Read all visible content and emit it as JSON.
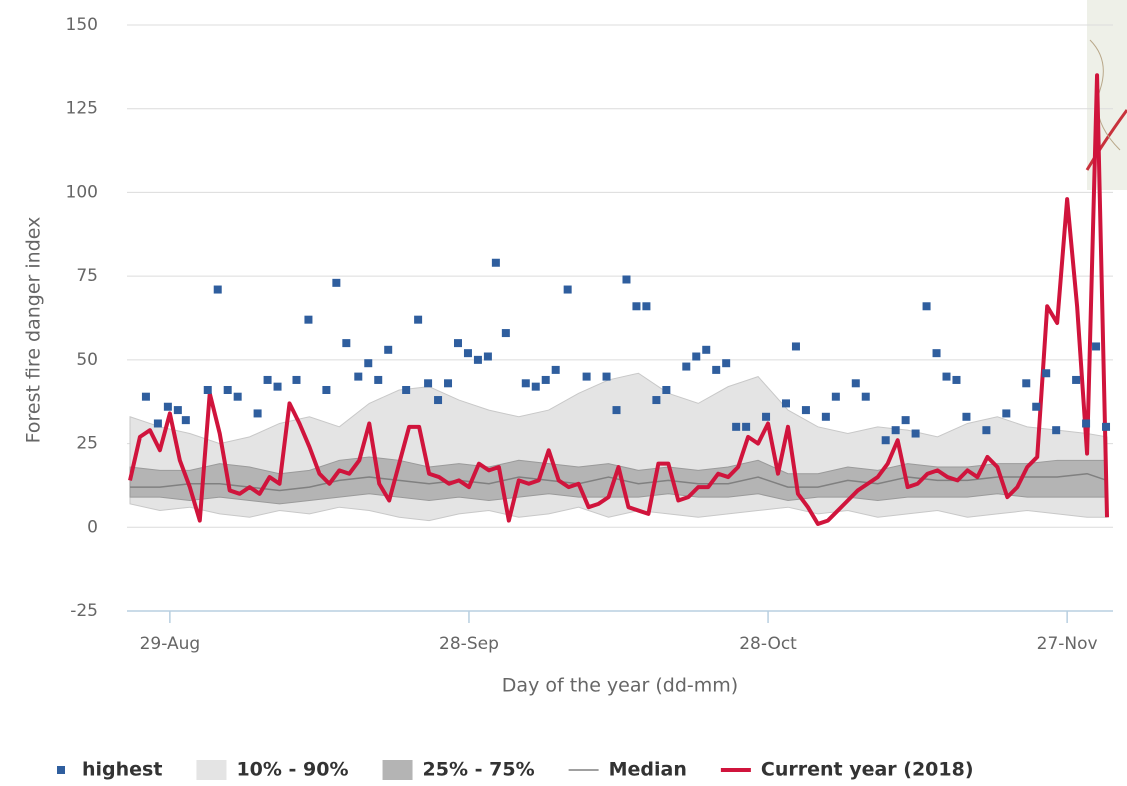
{
  "chart_data": {
    "type": "line",
    "x_label": "Day of the year (dd-mm)",
    "y_label": "Forest fire danger index",
    "xlim": [
      236.7,
      335.6
    ],
    "xticks": [
      {
        "value": 241,
        "label": "29-Aug"
      },
      {
        "value": 271,
        "label": "28-Sep"
      },
      {
        "value": 301,
        "label": "28-Oct"
      },
      {
        "value": 331,
        "label": "27-Nov"
      }
    ],
    "ylim": [
      -25,
      150
    ],
    "yticks": [
      150,
      125,
      100,
      75,
      50,
      25,
      0,
      -25
    ],
    "grid": true,
    "legend": "bottom",
    "series": [
      {
        "name": "highest",
        "kind": "scatter",
        "color": "#2f5e9e",
        "x": [
          238.6,
          239.8,
          240.8,
          241.8,
          242.6,
          244.8,
          245.8,
          246.8,
          247.8,
          249.8,
          250.8,
          251.8,
          253.7,
          254.9,
          256.7,
          257.7,
          258.7,
          259.9,
          260.9,
          261.9,
          262.9,
          264.7,
          265.9,
          266.9,
          267.9,
          268.9,
          269.9,
          270.9,
          271.9,
          272.9,
          273.7,
          274.7,
          276.7,
          277.7,
          278.7,
          279.7,
          280.9,
          282.8,
          284.8,
          285.8,
          286.8,
          287.8,
          288.8,
          289.8,
          290.8,
          292.8,
          293.8,
          294.8,
          295.8,
          296.8,
          297.8,
          298.8,
          300.8,
          302.8,
          303.8,
          304.8,
          306.8,
          307.8,
          309.8,
          310.8,
          312.8,
          313.8,
          314.8,
          315.8,
          316.9,
          317.9,
          318.9,
          319.9,
          320.9,
          322.9,
          324.9,
          326.9,
          327.9,
          328.9,
          329.9,
          331.9,
          332.9,
          333.9,
          334.9
        ],
        "values": [
          39,
          31,
          36,
          35,
          32,
          41,
          71,
          41,
          39,
          34,
          44,
          42,
          44,
          62,
          41,
          73,
          55,
          45,
          49,
          44,
          53,
          41,
          62,
          43,
          38,
          43,
          55,
          52,
          50,
          51,
          79,
          58,
          43,
          42,
          44,
          47,
          71,
          45,
          45,
          35,
          74,
          66,
          66,
          38,
          41,
          48,
          51,
          53,
          47,
          49,
          30,
          30,
          33,
          37,
          54,
          35,
          33,
          39,
          43,
          39,
          26,
          29,
          32,
          28,
          66,
          52,
          45,
          44,
          33,
          29,
          34,
          43,
          36,
          46,
          29,
          44,
          31,
          54,
          30
        ]
      },
      {
        "name": "10% - 90%",
        "kind": "range",
        "color": "#e4e4e4",
        "edge": "#c8c8c8",
        "x": [
          237,
          240,
          243,
          246,
          249,
          252,
          255,
          258,
          261,
          264,
          267,
          270,
          273,
          276,
          279,
          282,
          285,
          288,
          291,
          294,
          297,
          300,
          303,
          306,
          309,
          312,
          315,
          318,
          321,
          324,
          327,
          330,
          333,
          335
        ],
        "low": [
          7,
          5,
          6,
          4,
          3,
          5,
          4,
          6,
          5,
          3,
          2,
          4,
          5,
          3,
          4,
          6,
          3,
          5,
          4,
          3,
          4,
          5,
          6,
          4,
          5,
          3,
          4,
          5,
          3,
          4,
          5,
          4,
          3,
          3
        ],
        "high": [
          33,
          30,
          28,
          25,
          27,
          31,
          33,
          30,
          37,
          41,
          42,
          38,
          35,
          33,
          35,
          40,
          44,
          46,
          40,
          37,
          42,
          45,
          35,
          30,
          28,
          30,
          29,
          27,
          31,
          33,
          30,
          29,
          28,
          27
        ]
      },
      {
        "name": "25% - 75%",
        "kind": "range",
        "color": "#b4b4b4",
        "edge": "#9a9a9a",
        "x": [
          237,
          240,
          243,
          246,
          249,
          252,
          255,
          258,
          261,
          264,
          267,
          270,
          273,
          276,
          279,
          282,
          285,
          288,
          291,
          294,
          297,
          300,
          303,
          306,
          309,
          312,
          315,
          318,
          321,
          324,
          327,
          330,
          333,
          335
        ],
        "low": [
          9,
          9,
          8,
          9,
          8,
          7,
          8,
          9,
          10,
          9,
          8,
          9,
          8,
          9,
          10,
          9,
          9,
          9,
          10,
          9,
          9,
          10,
          8,
          9,
          9,
          8,
          9,
          9,
          9,
          10,
          9,
          9,
          9,
          9
        ],
        "high": [
          18,
          17,
          17,
          19,
          18,
          16,
          17,
          20,
          21,
          20,
          18,
          19,
          18,
          20,
          19,
          18,
          19,
          17,
          18,
          17,
          18,
          20,
          16,
          16,
          18,
          17,
          19,
          18,
          18,
          19,
          19,
          20,
          20,
          20
        ]
      },
      {
        "name": "Median",
        "kind": "line",
        "color": "#808080",
        "width": 1.5,
        "x": [
          237,
          240,
          243,
          246,
          249,
          252,
          255,
          258,
          261,
          264,
          267,
          270,
          273,
          276,
          279,
          282,
          285,
          288,
          291,
          294,
          297,
          300,
          303,
          306,
          309,
          312,
          315,
          318,
          321,
          324,
          327,
          330,
          333,
          335
        ],
        "values": [
          12,
          12,
          13,
          13,
          12,
          11,
          12,
          14,
          15,
          14,
          13,
          14,
          13,
          15,
          14,
          13,
          15,
          13,
          14,
          13,
          13,
          15,
          12,
          12,
          14,
          13,
          15,
          14,
          14,
          15,
          15,
          15,
          16,
          14
        ]
      },
      {
        "name": "Current year (2018)",
        "kind": "line",
        "color": "#d0143c",
        "width": 4,
        "x": [
          237,
          238,
          239,
          240,
          241,
          242,
          243,
          244,
          245,
          246,
          247,
          248,
          249,
          250,
          251,
          252,
          253,
          254,
          255,
          256,
          257,
          258,
          259,
          260,
          261,
          262,
          263,
          264,
          265,
          266,
          267,
          268,
          269,
          270,
          271,
          272,
          273,
          274,
          275,
          276,
          277,
          278,
          279,
          280,
          281,
          282,
          283,
          284,
          285,
          286,
          287,
          288,
          289,
          290,
          291,
          292,
          293,
          294,
          295,
          296,
          297,
          298,
          299,
          300,
          301,
          302,
          303,
          304,
          305,
          306,
          307,
          308,
          309,
          310,
          311,
          312,
          313,
          314,
          315,
          316,
          317,
          318,
          319,
          320,
          321,
          322,
          323,
          324,
          325,
          326,
          327,
          328,
          329,
          330,
          331,
          332,
          333,
          334,
          335
        ],
        "values": [
          14,
          27,
          29,
          23,
          34,
          20,
          12,
          2,
          40,
          28,
          11,
          10,
          12,
          10,
          15,
          13,
          37,
          31,
          24,
          16,
          13,
          17,
          16,
          20,
          31,
          13,
          8,
          19,
          30,
          30,
          16,
          15,
          13,
          14,
          12,
          19,
          17,
          18,
          2,
          14,
          13,
          14,
          23,
          14,
          12,
          13,
          6,
          7,
          9,
          18,
          6,
          5,
          4,
          19,
          19,
          8,
          9,
          12,
          12,
          16,
          15,
          18,
          27,
          25,
          31,
          16,
          30,
          10,
          6,
          1,
          2,
          5,
          8,
          11,
          13,
          15,
          19,
          26,
          12,
          13,
          16,
          17,
          15,
          14,
          17,
          15,
          21,
          18,
          9,
          12,
          18,
          21,
          66,
          61,
          98,
          66,
          22,
          135,
          3
        ]
      }
    ]
  }
}
